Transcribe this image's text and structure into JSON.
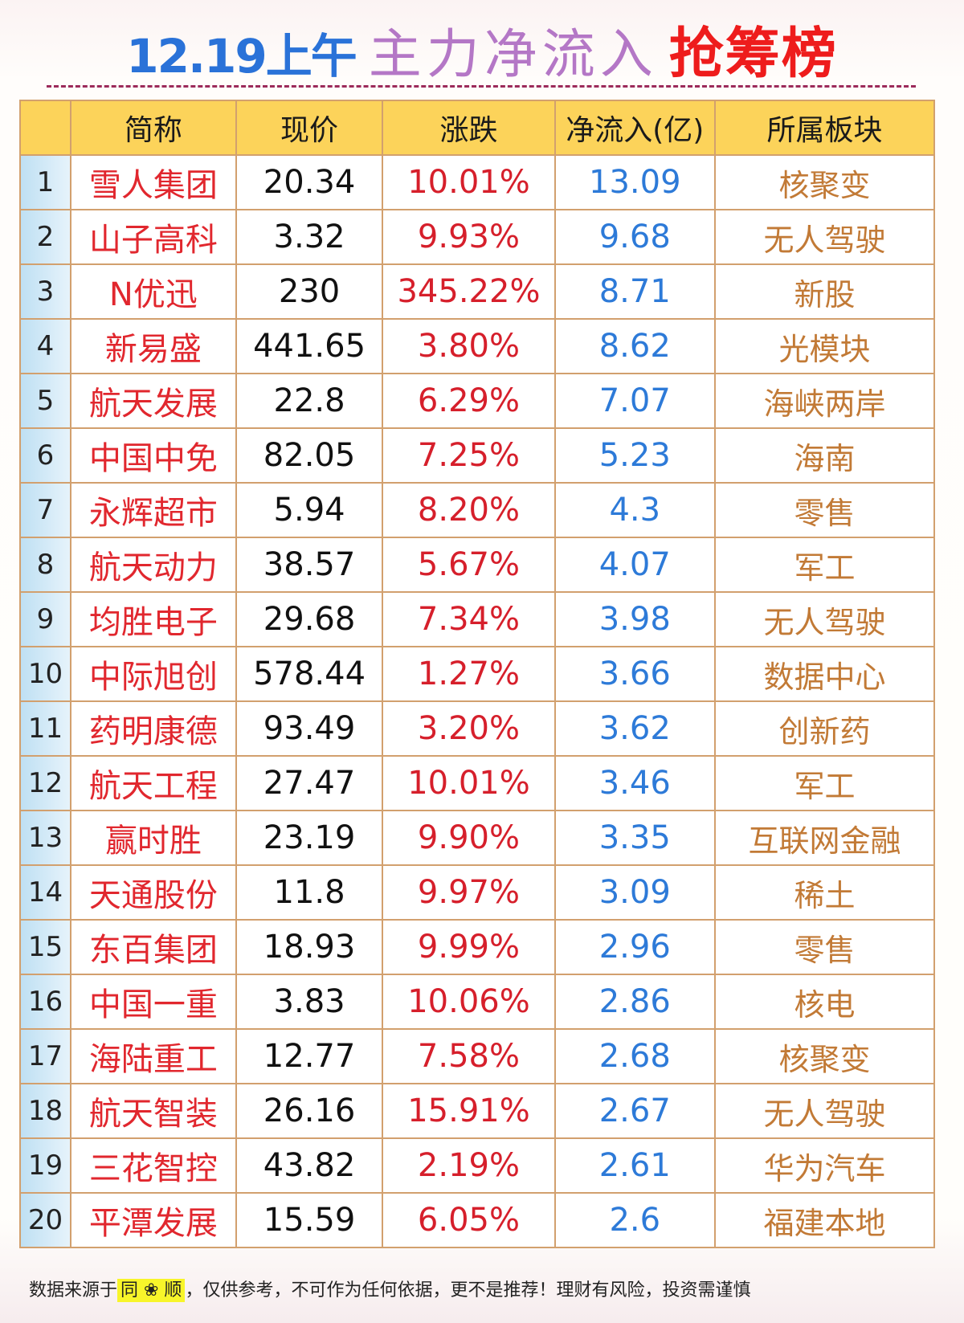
{
  "title": {
    "date": "12.19上午",
    "main": "主力净流入",
    "highlight": "抢筹榜"
  },
  "table": {
    "headers": [
      "",
      "简称",
      "现价",
      "涨跌",
      "净流入(亿)",
      "所属板块"
    ],
    "rows": [
      {
        "rank": "1",
        "name": "雪人集团",
        "price": "20.34",
        "change": "10.01%",
        "inflow": "13.09",
        "sector": "核聚变"
      },
      {
        "rank": "2",
        "name": "山子高科",
        "price": "3.32",
        "change": "9.93%",
        "inflow": "9.68",
        "sector": "无人驾驶"
      },
      {
        "rank": "3",
        "name": "N优迅",
        "price": "230",
        "change": "345.22%",
        "inflow": "8.71",
        "sector": "新股"
      },
      {
        "rank": "4",
        "name": "新易盛",
        "price": "441.65",
        "change": "3.80%",
        "inflow": "8.62",
        "sector": "光模块"
      },
      {
        "rank": "5",
        "name": "航天发展",
        "price": "22.8",
        "change": "6.29%",
        "inflow": "7.07",
        "sector": "海峡两岸"
      },
      {
        "rank": "6",
        "name": "中国中免",
        "price": "82.05",
        "change": "7.25%",
        "inflow": "5.23",
        "sector": "海南"
      },
      {
        "rank": "7",
        "name": "永辉超市",
        "price": "5.94",
        "change": "8.20%",
        "inflow": "4.3",
        "sector": "零售"
      },
      {
        "rank": "8",
        "name": "航天动力",
        "price": "38.57",
        "change": "5.67%",
        "inflow": "4.07",
        "sector": "军工"
      },
      {
        "rank": "9",
        "name": "均胜电子",
        "price": "29.68",
        "change": "7.34%",
        "inflow": "3.98",
        "sector": "无人驾驶"
      },
      {
        "rank": "10",
        "name": "中际旭创",
        "price": "578.44",
        "change": "1.27%",
        "inflow": "3.66",
        "sector": "数据中心"
      },
      {
        "rank": "11",
        "name": "药明康德",
        "price": "93.49",
        "change": "3.20%",
        "inflow": "3.62",
        "sector": "创新药"
      },
      {
        "rank": "12",
        "name": "航天工程",
        "price": "27.47",
        "change": "10.01%",
        "inflow": "3.46",
        "sector": "军工"
      },
      {
        "rank": "13",
        "name": "赢时胜",
        "price": "23.19",
        "change": "9.90%",
        "inflow": "3.35",
        "sector": "互联网金融"
      },
      {
        "rank": "14",
        "name": "天通股份",
        "price": "11.8",
        "change": "9.97%",
        "inflow": "3.09",
        "sector": "稀土"
      },
      {
        "rank": "15",
        "name": "东百集团",
        "price": "18.93",
        "change": "9.99%",
        "inflow": "2.96",
        "sector": "零售"
      },
      {
        "rank": "16",
        "name": "中国一重",
        "price": "3.83",
        "change": "10.06%",
        "inflow": "2.86",
        "sector": "核电"
      },
      {
        "rank": "17",
        "name": "海陆重工",
        "price": "12.77",
        "change": "7.58%",
        "inflow": "2.68",
        "sector": "核聚变"
      },
      {
        "rank": "18",
        "name": "航天智装",
        "price": "26.16",
        "change": "15.91%",
        "inflow": "2.67",
        "sector": "无人驾驶"
      },
      {
        "rank": "19",
        "name": "三花智控",
        "price": "43.82",
        "change": "2.19%",
        "inflow": "2.61",
        "sector": "华为汽车"
      },
      {
        "rank": "20",
        "name": "平潭发展",
        "price": "15.59",
        "change": "6.05%",
        "inflow": "2.6",
        "sector": "福建本地"
      }
    ]
  },
  "footer": {
    "prefix": "数据来源于",
    "source": "同 ❀ 顺",
    "suffix": "，仅供参考，不可作为任何依据，更不是推荐！理财有风险，投资需谨慎"
  },
  "colors": {
    "header_bg": "#fcd35a",
    "name": "#e1272e",
    "change": "#d61f2b",
    "inflow": "#2d7ad8",
    "sector": "#c27a36",
    "title_date": "#2a72d8",
    "title_main": "#b477c6",
    "title_highlight": "#ee1c1c"
  }
}
